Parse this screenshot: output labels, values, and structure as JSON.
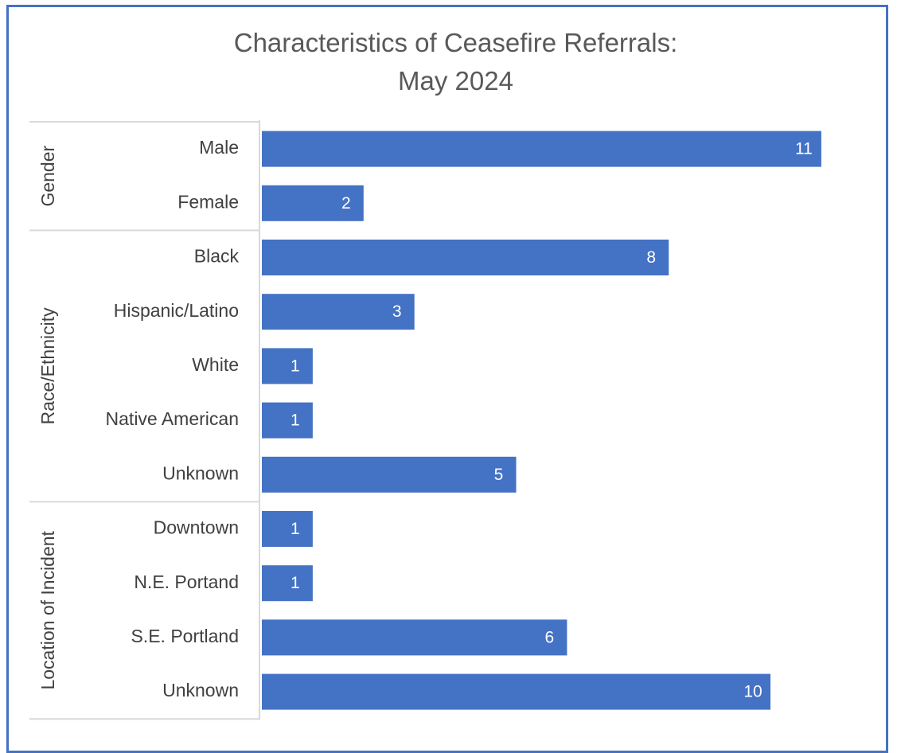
{
  "chart_data": {
    "type": "bar",
    "orientation": "horizontal",
    "title": "Characteristics of Ceasefire Referrals:",
    "subtitle": "May 2024",
    "bar_color": "#4472c4",
    "frame_color": "#4472c4",
    "xlim": [
      0,
      12
    ],
    "data_labels": true,
    "groups": [
      {
        "name": "Gender",
        "categories": [
          "Male",
          "Female"
        ],
        "values": [
          11,
          2
        ]
      },
      {
        "name": "Race/Ethnicity",
        "categories": [
          "Black",
          "Hispanic/Latino",
          "White",
          "Native American",
          "Unknown"
        ],
        "values": [
          8,
          3,
          1,
          1,
          5
        ]
      },
      {
        "name": "Location of Incident",
        "categories": [
          "Downtown",
          "N.E. Portand",
          "S.E. Portland",
          "Unknown"
        ],
        "values": [
          1,
          1,
          6,
          10
        ]
      }
    ]
  }
}
